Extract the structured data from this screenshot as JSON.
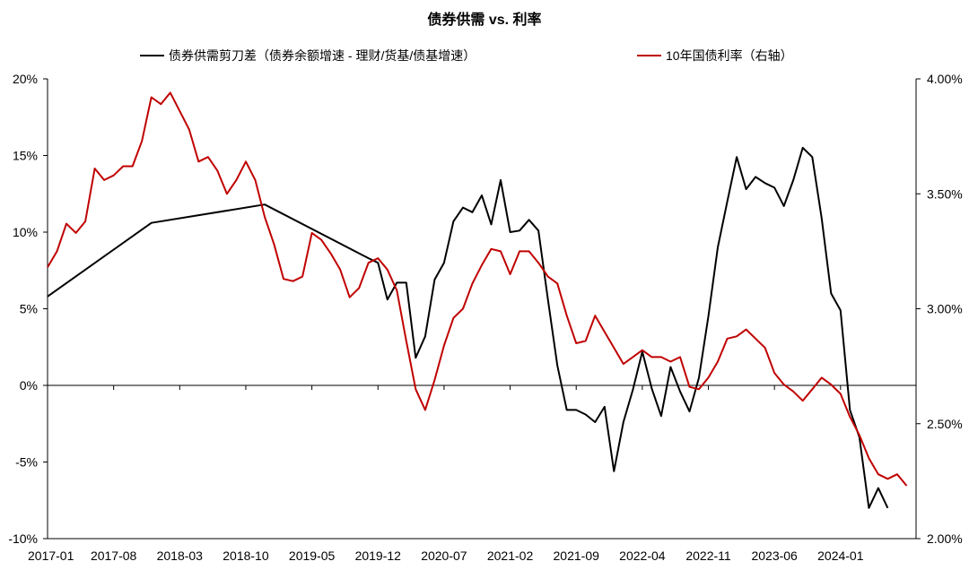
{
  "chart_data": {
    "type": "line",
    "title": "债券供需 vs. 利率",
    "x_ticks": [
      "2017-01",
      "2017-08",
      "2018-03",
      "2018-10",
      "2019-05",
      "2019-12",
      "2020-07",
      "2021-02",
      "2021-09",
      "2022-04",
      "2022-11",
      "2023-06",
      "2024-01"
    ],
    "y_left": {
      "ticks": [
        "-10%",
        "-5%",
        "0%",
        "5%",
        "10%",
        "15%",
        "20%"
      ],
      "range": [
        -10,
        20
      ],
      "unit": "%"
    },
    "y_right": {
      "ticks": [
        "2.00%",
        "2.50%",
        "3.00%",
        "3.50%",
        "4.00%"
      ],
      "range": [
        2.0,
        4.0
      ],
      "unit": "%"
    },
    "grid": false,
    "legend_position": "top",
    "series": [
      {
        "name": "债券供需剪刀差（债券余额增速 - 理财/货基/债基增速）",
        "axis": "left",
        "color": "#000000",
        "points": [
          [
            "2017-01",
            5.8
          ],
          [
            "2017-12",
            10.6
          ],
          [
            "2018-12",
            11.8
          ],
          [
            "2019-11",
            8.3
          ],
          [
            "2019-12",
            8.0
          ],
          [
            "2020-01",
            5.6
          ],
          [
            "2020-02",
            6.7
          ],
          [
            "2020-03",
            6.7
          ],
          [
            "2020-04",
            1.8
          ],
          [
            "2020-05",
            3.2
          ],
          [
            "2020-06",
            6.9
          ],
          [
            "2020-07",
            8.0
          ],
          [
            "2020-08",
            10.7
          ],
          [
            "2020-09",
            11.6
          ],
          [
            "2020-10",
            11.3
          ],
          [
            "2020-11",
            12.4
          ],
          [
            "2020-12",
            10.5
          ],
          [
            "2021-01",
            13.4
          ],
          [
            "2021-02",
            10.0
          ],
          [
            "2021-03",
            10.1
          ],
          [
            "2021-04",
            10.8
          ],
          [
            "2021-05",
            10.1
          ],
          [
            "2021-06",
            5.6
          ],
          [
            "2021-07",
            1.3
          ],
          [
            "2021-08",
            -1.6
          ],
          [
            "2021-09",
            -1.6
          ],
          [
            "2021-10",
            -1.9
          ],
          [
            "2021-11",
            -2.4
          ],
          [
            "2021-12",
            -1.4
          ],
          [
            "2022-01",
            -5.6
          ],
          [
            "2022-02",
            -2.4
          ],
          [
            "2022-03",
            -0.3
          ],
          [
            "2022-04",
            2.2
          ],
          [
            "2022-05",
            -0.2
          ],
          [
            "2022-06",
            -2.0
          ],
          [
            "2022-07",
            1.2
          ],
          [
            "2022-08",
            -0.4
          ],
          [
            "2022-09",
            -1.7
          ],
          [
            "2022-10",
            0.5
          ],
          [
            "2022-11",
            4.5
          ],
          [
            "2022-12",
            9.0
          ],
          [
            "2023-01",
            12.0
          ],
          [
            "2023-02",
            14.9
          ],
          [
            "2023-03",
            12.8
          ],
          [
            "2023-04",
            13.6
          ],
          [
            "2023-05",
            13.2
          ],
          [
            "2023-06",
            12.9
          ],
          [
            "2023-07",
            11.7
          ],
          [
            "2023-08",
            13.4
          ],
          [
            "2023-09",
            15.5
          ],
          [
            "2023-10",
            14.9
          ],
          [
            "2023-11",
            10.9
          ],
          [
            "2023-12",
            6.0
          ],
          [
            "2024-01",
            4.9
          ],
          [
            "2024-02",
            -1.6
          ],
          [
            "2024-03",
            -3.4
          ],
          [
            "2024-04",
            -8.0
          ],
          [
            "2024-05",
            -6.7
          ],
          [
            "2024-06",
            -8.0
          ]
        ]
      },
      {
        "name": "10年国债利率（右轴）",
        "axis": "right",
        "color": "#c00000",
        "points": [
          [
            "2017-01",
            3.18
          ],
          [
            "2017-02",
            3.25
          ],
          [
            "2017-03",
            3.37
          ],
          [
            "2017-04",
            3.33
          ],
          [
            "2017-05",
            3.38
          ],
          [
            "2017-06",
            3.61
          ],
          [
            "2017-07",
            3.56
          ],
          [
            "2017-08",
            3.58
          ],
          [
            "2017-09",
            3.62
          ],
          [
            "2017-10",
            3.62
          ],
          [
            "2017-11",
            3.73
          ],
          [
            "2017-12",
            3.92
          ],
          [
            "2018-01",
            3.89
          ],
          [
            "2018-02",
            3.94
          ],
          [
            "2018-03",
            3.86
          ],
          [
            "2018-04",
            3.78
          ],
          [
            "2018-05",
            3.64
          ],
          [
            "2018-06",
            3.66
          ],
          [
            "2018-07",
            3.6
          ],
          [
            "2018-08",
            3.5
          ],
          [
            "2018-09",
            3.56
          ],
          [
            "2018-10",
            3.64
          ],
          [
            "2018-11",
            3.56
          ],
          [
            "2018-12",
            3.4
          ],
          [
            "2019-01",
            3.28
          ],
          [
            "2019-02",
            3.13
          ],
          [
            "2019-03",
            3.12
          ],
          [
            "2019-04",
            3.14
          ],
          [
            "2019-05",
            3.33
          ],
          [
            "2019-06",
            3.3
          ],
          [
            "2019-07",
            3.24
          ],
          [
            "2019-08",
            3.17
          ],
          [
            "2019-09",
            3.05
          ],
          [
            "2019-10",
            3.09
          ],
          [
            "2019-11",
            3.2
          ],
          [
            "2019-12",
            3.22
          ],
          [
            "2020-01",
            3.17
          ],
          [
            "2020-02",
            3.08
          ],
          [
            "2020-03",
            2.86
          ],
          [
            "2020-04",
            2.65
          ],
          [
            "2020-05",
            2.56
          ],
          [
            "2020-06",
            2.69
          ],
          [
            "2020-07",
            2.84
          ],
          [
            "2020-08",
            2.96
          ],
          [
            "2020-09",
            3.0
          ],
          [
            "2020-10",
            3.11
          ],
          [
            "2020-11",
            3.19
          ],
          [
            "2020-12",
            3.26
          ],
          [
            "2021-01",
            3.25
          ],
          [
            "2021-02",
            3.15
          ],
          [
            "2021-03",
            3.25
          ],
          [
            "2021-04",
            3.25
          ],
          [
            "2021-05",
            3.2
          ],
          [
            "2021-06",
            3.14
          ],
          [
            "2021-07",
            3.11
          ],
          [
            "2021-08",
            2.97
          ],
          [
            "2021-09",
            2.85
          ],
          [
            "2021-10",
            2.86
          ],
          [
            "2021-11",
            2.97
          ],
          [
            "2021-12",
            2.9
          ],
          [
            "2022-01",
            2.83
          ],
          [
            "2022-02",
            2.76
          ],
          [
            "2022-03",
            2.79
          ],
          [
            "2022-04",
            2.82
          ],
          [
            "2022-05",
            2.79
          ],
          [
            "2022-06",
            2.79
          ],
          [
            "2022-07",
            2.77
          ],
          [
            "2022-08",
            2.79
          ],
          [
            "2022-09",
            2.66
          ],
          [
            "2022-10",
            2.65
          ],
          [
            "2022-11",
            2.7
          ],
          [
            "2022-12",
            2.77
          ],
          [
            "2023-01",
            2.87
          ],
          [
            "2023-02",
            2.88
          ],
          [
            "2023-03",
            2.91
          ],
          [
            "2023-04",
            2.87
          ],
          [
            "2023-05",
            2.83
          ],
          [
            "2023-06",
            2.72
          ],
          [
            "2023-07",
            2.67
          ],
          [
            "2023-08",
            2.64
          ],
          [
            "2023-09",
            2.6
          ],
          [
            "2023-10",
            2.65
          ],
          [
            "2023-11",
            2.7
          ],
          [
            "2023-12",
            2.67
          ],
          [
            "2024-01",
            2.63
          ],
          [
            "2024-02",
            2.53
          ],
          [
            "2024-03",
            2.45
          ],
          [
            "2024-04",
            2.35
          ],
          [
            "2024-05",
            2.28
          ],
          [
            "2024-06",
            2.26
          ],
          [
            "2024-07",
            2.28
          ],
          [
            "2024-08",
            2.23
          ]
        ]
      }
    ]
  }
}
